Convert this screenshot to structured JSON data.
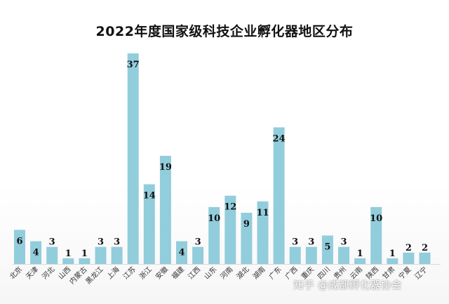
{
  "chart_data": {
    "type": "bar",
    "title": "2022年度国家级科技企业孵化器地区分布",
    "xlabel": "",
    "ylabel": "",
    "ylim": [
      0,
      40
    ],
    "grid": false,
    "legend": "none",
    "categories": [
      "北京",
      "天津",
      "河北",
      "山西",
      "内蒙古",
      "黑龙江",
      "上海",
      "江苏",
      "浙江",
      "安徽",
      "福建",
      "江西",
      "山东",
      "河南",
      "湖北",
      "湖南",
      "广东",
      "广西",
      "重庆",
      "四川",
      "贵州",
      "云南",
      "陕西",
      "甘肃",
      "宁夏",
      "辽宁"
    ],
    "values": [
      6,
      4,
      3,
      1,
      1,
      3,
      3,
      37,
      14,
      19,
      4,
      3,
      10,
      12,
      9,
      11,
      24,
      3,
      3,
      5,
      3,
      1,
      10,
      1,
      2,
      2
    ],
    "bar_color": "#92cddc"
  },
  "watermark": "知乎 @成都孵化器协会"
}
